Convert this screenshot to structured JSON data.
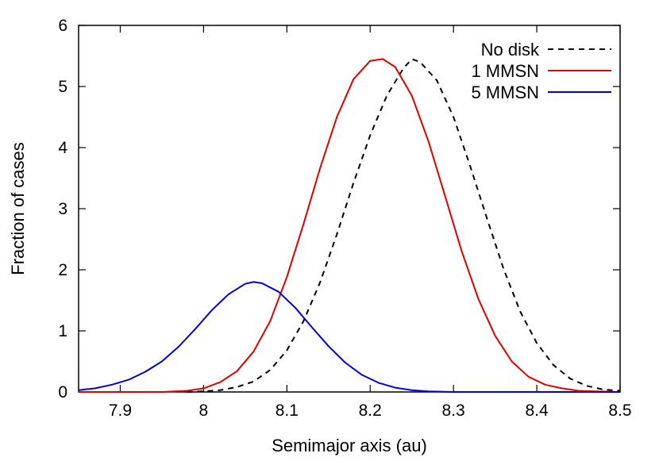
{
  "chart_data": {
    "type": "line",
    "title": "",
    "xlabel": "Semimajor axis (au)",
    "ylabel": "Fraction of cases",
    "xlim": [
      7.85,
      8.5
    ],
    "ylim": [
      0,
      6
    ],
    "x_ticks": [
      7.9,
      8.0,
      8.1,
      8.2,
      8.3,
      8.4,
      8.5
    ],
    "x_tick_labels": [
      "7.9",
      "8",
      "8.1",
      "8.2",
      "8.3",
      "8.4",
      "8.5"
    ],
    "y_ticks": [
      0,
      1,
      2,
      3,
      4,
      5,
      6
    ],
    "y_tick_labels": [
      "0",
      "1",
      "2",
      "3",
      "4",
      "5",
      "6"
    ],
    "grid": false,
    "legend_position": "top-right",
    "series": [
      {
        "name": "No disk",
        "color": "#000000",
        "dash": "dashed",
        "x": [
          7.98,
          8.0,
          8.02,
          8.04,
          8.06,
          8.08,
          8.1,
          8.12,
          8.14,
          8.16,
          8.18,
          8.2,
          8.22,
          8.24,
          8.25,
          8.26,
          8.28,
          8.3,
          8.32,
          8.34,
          8.36,
          8.38,
          8.4,
          8.42,
          8.44,
          8.46,
          8.48,
          8.5
        ],
        "y": [
          0.0,
          0.01,
          0.03,
          0.08,
          0.17,
          0.36,
          0.68,
          1.16,
          1.8,
          2.58,
          3.42,
          4.2,
          4.85,
          5.3,
          5.45,
          5.4,
          5.1,
          4.5,
          3.7,
          2.85,
          2.02,
          1.32,
          0.8,
          0.44,
          0.22,
          0.1,
          0.04,
          0.02
        ]
      },
      {
        "name": "1 MMSN",
        "color": "#e00000",
        "dash": "solid",
        "x": [
          7.85,
          7.9,
          7.95,
          7.98,
          8.0,
          8.02,
          8.04,
          8.06,
          8.08,
          8.1,
          8.12,
          8.14,
          8.16,
          8.18,
          8.2,
          8.215,
          8.23,
          8.25,
          8.27,
          8.29,
          8.31,
          8.33,
          8.35,
          8.37,
          8.39,
          8.41,
          8.43,
          8.45,
          8.47,
          8.5
        ],
        "y": [
          0.0,
          0.0,
          0.0,
          0.02,
          0.06,
          0.16,
          0.34,
          0.66,
          1.16,
          1.88,
          2.75,
          3.67,
          4.5,
          5.12,
          5.42,
          5.45,
          5.32,
          4.85,
          4.1,
          3.2,
          2.3,
          1.52,
          0.92,
          0.5,
          0.25,
          0.12,
          0.06,
          0.02,
          0.01,
          0.0
        ]
      },
      {
        "name": "5 MMSN",
        "color": "#0000dd",
        "dash": "solid",
        "x": [
          7.85,
          7.87,
          7.89,
          7.91,
          7.93,
          7.95,
          7.97,
          7.99,
          8.01,
          8.03,
          8.05,
          8.06,
          8.07,
          8.09,
          8.11,
          8.13,
          8.15,
          8.17,
          8.19,
          8.21,
          8.23,
          8.25,
          8.27,
          8.3,
          8.35,
          8.4,
          8.5
        ],
        "y": [
          0.03,
          0.06,
          0.12,
          0.2,
          0.33,
          0.5,
          0.74,
          1.03,
          1.34,
          1.6,
          1.77,
          1.8,
          1.78,
          1.64,
          1.38,
          1.06,
          0.75,
          0.48,
          0.28,
          0.15,
          0.07,
          0.03,
          0.01,
          0.0,
          0.0,
          0.0,
          0.0
        ]
      }
    ]
  }
}
